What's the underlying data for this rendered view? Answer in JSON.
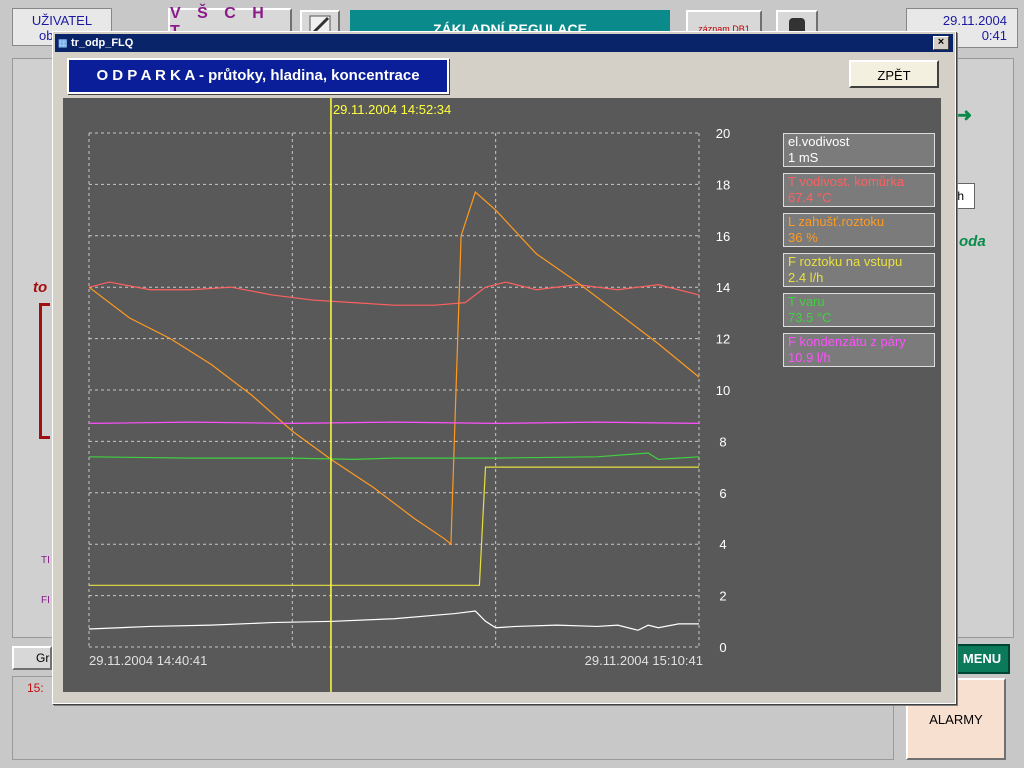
{
  "header": {
    "user_label": "UŽIVATEL",
    "user_sub": "ob",
    "school": "V Š C H T",
    "main_title": "ZÁKLADNÍ REGULACE",
    "record_btn": "záznam DB1",
    "date": "29.11.2004",
    "time": "0:41"
  },
  "background": {
    "gr_button": "Gr",
    "menu_button": "MENU",
    "alarmy_button": "ALARMY",
    "left_label": "to",
    "left_red_time": "15:",
    "right_unit": "/h",
    "right_label": "oda",
    "left_tag1": "TI",
    "left_tag2": "FI"
  },
  "dialog": {
    "window_title": "tr_odp_FLQ",
    "heading": "O D P A R K A - průtoky, hladina, koncentrace",
    "back_button": "ZPĚT"
  },
  "colors": {
    "conductivity": "#ffffff",
    "temp_cell": "#ff6060",
    "level": "#ff9a20",
    "flow_in": "#e8e040",
    "boil_temp": "#40d040",
    "condensate": "#ff50ff",
    "cursor": "#ffff40",
    "grid": "#c8c8c8"
  },
  "chart_data": {
    "type": "line",
    "cursor_label": "29.11.2004 14:52:34",
    "x_start_label": "29.11.2004 14:40:41",
    "x_end_label": "29.11.2004 15:10:41",
    "x_range": [
      "14:40:41",
      "15:10:41"
    ],
    "cursor_minute": 11.9,
    "ylim": [
      0,
      20
    ],
    "y_ticks": [
      0,
      2,
      4,
      6,
      8,
      10,
      12,
      14,
      16,
      18,
      20
    ],
    "grid": true,
    "legend_placement": "right",
    "series": [
      {
        "name": "el.vodivost",
        "value_text": "1  mS",
        "color_key": "conductivity",
        "x": [
          0,
          3,
          6,
          9,
          12,
          15,
          18,
          19,
          19.5,
          20,
          21,
          23,
          25,
          26,
          27,
          27.5,
          28,
          29,
          30
        ],
        "y": [
          0.7,
          0.8,
          0.85,
          0.95,
          1.0,
          1.1,
          1.3,
          1.4,
          1.0,
          0.75,
          0.8,
          0.85,
          0.8,
          0.85,
          0.65,
          0.85,
          0.75,
          0.9,
          0.9
        ]
      },
      {
        "name": "T vodivost. komůrka",
        "value_text": "67.4  °C",
        "color_key": "temp_cell",
        "x": [
          0,
          1,
          3,
          5,
          7,
          9,
          11,
          13,
          15,
          17,
          18.5,
          19.5,
          20.5,
          22,
          24,
          26,
          28,
          30
        ],
        "y": [
          14.0,
          14.2,
          13.9,
          13.9,
          14.0,
          13.7,
          13.5,
          13.4,
          13.3,
          13.3,
          13.4,
          14.0,
          14.2,
          13.9,
          14.1,
          13.9,
          14.1,
          13.7
        ]
      },
      {
        "name": "L zahušť.roztoku",
        "value_text": "36  %",
        "color_key": "level",
        "x": [
          0,
          2,
          4,
          6,
          8,
          10,
          11.9,
          14,
          16,
          17.5,
          17.8,
          18.3,
          19,
          20,
          22,
          24,
          26,
          28,
          30
        ],
        "y": [
          14.0,
          12.8,
          12.0,
          11.0,
          9.8,
          8.4,
          7.3,
          6.2,
          5.0,
          4.2,
          4.0,
          16.0,
          17.7,
          17.0,
          15.3,
          14.2,
          13.0,
          11.8,
          10.5
        ]
      },
      {
        "name": "F roztoku na vstupu",
        "value_text": "2.4  l/h",
        "color_key": "flow_in",
        "x": [
          0,
          19.2,
          19.5,
          30
        ],
        "y": [
          2.4,
          2.4,
          7.0,
          7.0
        ]
      },
      {
        "name": "T varu",
        "value_text": "73.5  °C",
        "color_key": "boil_temp",
        "x": [
          0,
          5,
          10,
          13,
          15,
          20,
          25,
          27.5,
          28,
          30
        ],
        "y": [
          7.4,
          7.35,
          7.35,
          7.3,
          7.35,
          7.35,
          7.4,
          7.55,
          7.3,
          7.4
        ]
      },
      {
        "name": "F kondenzátu z páry",
        "value_text": "10.9  l/h",
        "color_key": "condensate",
        "x": [
          0,
          5,
          10,
          15,
          20,
          25,
          30
        ],
        "y": [
          8.7,
          8.75,
          8.7,
          8.75,
          8.7,
          8.75,
          8.7
        ]
      }
    ]
  }
}
